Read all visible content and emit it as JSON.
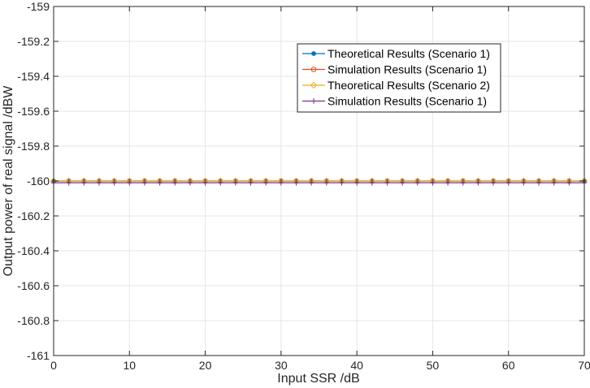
{
  "chart_data": {
    "type": "line",
    "xlabel": "Input SSR /dB",
    "ylabel": "Output power of real signal /dBW",
    "xlim": [
      0,
      70
    ],
    "ylim": [
      -161,
      -159
    ],
    "xticks": [
      0,
      10,
      20,
      30,
      40,
      50,
      60,
      70
    ],
    "yticks": [
      -159,
      -159.2,
      -159.4,
      -159.6,
      -159.8,
      -160,
      -160.2,
      -160.4,
      -160.6,
      -160.8,
      -161
    ],
    "ytick_labels": [
      "-159",
      "-159.2",
      "-159.4",
      "-159.6",
      "-159.8",
      "-160",
      "-160.2",
      "-160.4",
      "-160.6",
      "-160.8",
      "-161"
    ],
    "xtick_labels": [
      "0",
      "10",
      "20",
      "30",
      "40",
      "50",
      "60",
      "70"
    ],
    "grid": true,
    "legend_position": "top-right",
    "x": [
      0,
      2,
      4,
      6,
      8,
      10,
      12,
      14,
      16,
      18,
      20,
      22,
      24,
      26,
      28,
      30,
      32,
      34,
      36,
      38,
      40,
      42,
      44,
      46,
      48,
      50,
      52,
      54,
      56,
      58,
      60,
      62,
      64,
      66,
      68,
      70
    ],
    "series": [
      {
        "name": "Theoretical Results (Scenario 1)",
        "color": "#0072BD",
        "marker": "dot",
        "value": -160.0
      },
      {
        "name": "Simulation Results (Scenario 1)",
        "color": "#D95319",
        "marker": "circle",
        "value": -160.0
      },
      {
        "name": "Theoretical Results (Scenario 2)",
        "color": "#EDB120",
        "marker": "diamond",
        "value": -160.0
      },
      {
        "name": "Simulation Results (Scenario 1)",
        "color": "#7E2F8E",
        "marker": "plus",
        "value": -160.01
      }
    ]
  }
}
